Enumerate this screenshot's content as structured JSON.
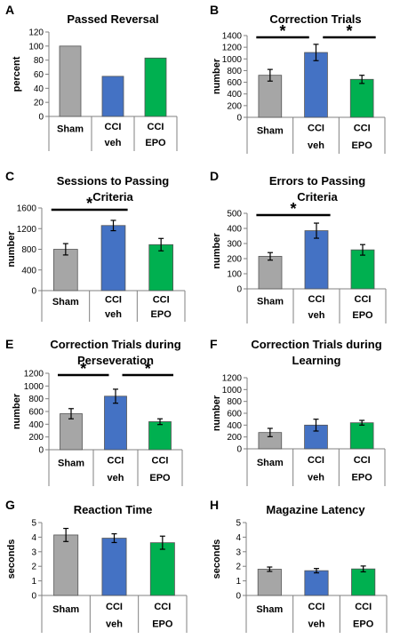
{
  "figure": {
    "colors": {
      "sham": "#a6a6a6",
      "veh": "#4472c4",
      "epo": "#00b050",
      "axis": "#808080",
      "bar_edge": "#555555"
    }
  },
  "chart_data": [
    {
      "panel": "A",
      "type": "bar",
      "title": "Passed Reversal",
      "ylabel": "percent",
      "ylim": [
        0,
        120
      ],
      "yticks": [
        0,
        20,
        40,
        60,
        80,
        100,
        120
      ],
      "categories": [
        [
          "Sham"
        ],
        [
          "CCI",
          "veh"
        ],
        [
          "CCI",
          "EPO"
        ]
      ],
      "values": [
        100,
        57,
        83
      ],
      "errors": [],
      "significance": []
    },
    {
      "panel": "B",
      "type": "bar",
      "title": "Correction Trials",
      "ylabel": "number",
      "ylim": [
        0,
        1400
      ],
      "yticks": [
        0,
        200,
        400,
        600,
        800,
        1000,
        1200,
        1400
      ],
      "categories": [
        [
          "Sham"
        ],
        [
          "CCI",
          "veh"
        ],
        [
          "CCI",
          "EPO"
        ]
      ],
      "values": [
        720,
        1110,
        650
      ],
      "errors": [
        100,
        140,
        70
      ],
      "significance": [
        {
          "from": 0,
          "to": 1,
          "label": "*"
        },
        {
          "from": 1,
          "to": 2,
          "label": "*"
        }
      ]
    },
    {
      "panel": "C",
      "type": "bar",
      "title": [
        "Sessions to Passing",
        "Criteria"
      ],
      "ylabel": "number",
      "ylim": [
        0,
        1600
      ],
      "yticks": [
        0,
        400,
        800,
        1200,
        1600
      ],
      "categories": [
        [
          "Sham"
        ],
        [
          "CCI",
          "veh"
        ],
        [
          "CCI",
          "EPO"
        ]
      ],
      "values": [
        800,
        1260,
        890
      ],
      "errors": [
        110,
        100,
        120
      ],
      "significance": [
        {
          "from": 0,
          "to": 1,
          "label": "*"
        }
      ]
    },
    {
      "panel": "D",
      "type": "bar",
      "title": [
        "Errors to Passing",
        "Criteria"
      ],
      "ylabel": "number",
      "ylim": [
        0,
        500
      ],
      "yticks": [
        0,
        100,
        200,
        300,
        400,
        500
      ],
      "categories": [
        [
          "Sham"
        ],
        [
          "CCI",
          "veh"
        ],
        [
          "CCI",
          "EPO"
        ]
      ],
      "values": [
        215,
        385,
        258
      ],
      "errors": [
        25,
        50,
        35
      ],
      "significance": [
        {
          "from": 0,
          "to": 1,
          "label": "*"
        }
      ]
    },
    {
      "panel": "E",
      "type": "bar",
      "title": [
        "Correction Trials during",
        "Perseveration"
      ],
      "ylabel": "number",
      "ylim": [
        0,
        1200
      ],
      "yticks": [
        0,
        200,
        400,
        600,
        800,
        1000,
        1200
      ],
      "categories": [
        [
          "Sham"
        ],
        [
          "CCI",
          "veh"
        ],
        [
          "CCI",
          "EPO"
        ]
      ],
      "values": [
        565,
        840,
        440
      ],
      "errors": [
        80,
        110,
        45
      ],
      "significance": [
        {
          "from": 0,
          "to": 1,
          "label": "*"
        },
        {
          "from": 1,
          "to": 2,
          "label": "*"
        }
      ]
    },
    {
      "panel": "F",
      "type": "bar",
      "title": [
        "Correction Trials during",
        "Learning"
      ],
      "ylabel": "number",
      "ylim": [
        0,
        1200
      ],
      "yticks": [
        0,
        200,
        400,
        600,
        800,
        1000,
        1200
      ],
      "categories": [
        [
          "Sham"
        ],
        [
          "CCI",
          "veh"
        ],
        [
          "CCI",
          "EPO"
        ]
      ],
      "values": [
        275,
        400,
        440
      ],
      "errors": [
        70,
        100,
        40
      ],
      "significance": []
    },
    {
      "panel": "G",
      "type": "bar",
      "title": "Reaction Time",
      "ylabel": "seconds",
      "ylim": [
        0,
        5
      ],
      "yticks": [
        0,
        1,
        2,
        3,
        4,
        5
      ],
      "categories": [
        [
          "Sham"
        ],
        [
          "CCI",
          "veh"
        ],
        [
          "CCI",
          "EPO"
        ]
      ],
      "values": [
        4.15,
        3.93,
        3.62
      ],
      "errors": [
        0.45,
        0.3,
        0.45
      ],
      "significance": []
    },
    {
      "panel": "H",
      "type": "bar",
      "title": "Magazine Latency",
      "ylabel": "seconds",
      "ylim": [
        0,
        5
      ],
      "yticks": [
        0,
        1,
        2,
        3,
        4,
        5
      ],
      "categories": [
        [
          "Sham"
        ],
        [
          "CCI",
          "veh"
        ],
        [
          "CCI",
          "EPO"
        ]
      ],
      "values": [
        1.8,
        1.7,
        1.82
      ],
      "errors": [
        0.15,
        0.15,
        0.2
      ],
      "significance": []
    }
  ]
}
